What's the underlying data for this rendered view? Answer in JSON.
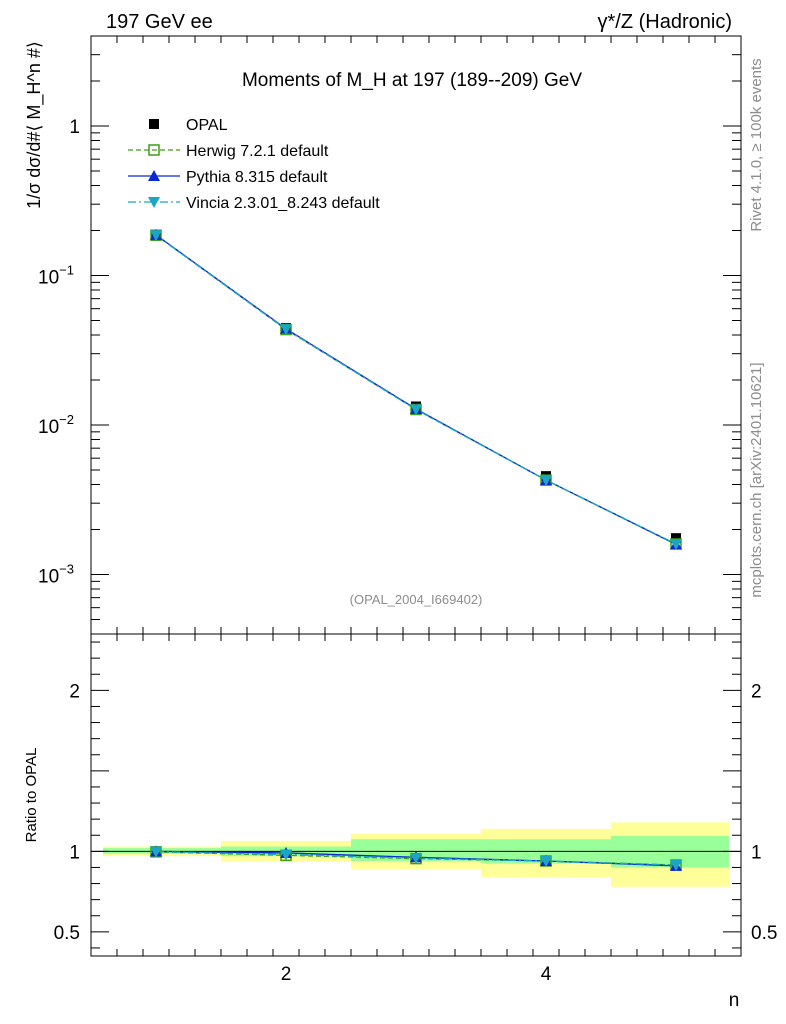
{
  "header": {
    "left_label": "197 GeV ee",
    "right_label": "γ*/Z (Hadronic)"
  },
  "side_labels": {
    "rivet": "Rivet 4.1.0, ≥ 100k events",
    "mcplots": "mcplots.cern.ch [arXiv:2401.10621]"
  },
  "chart_data": {
    "type": "line",
    "title": "Moments of M_H at 197 (189--209) GeV",
    "analysis_tag": "(OPAL_2004_I669402)",
    "xlabel": "n",
    "ylabel": "1/σ  dσ/d#⟨ M_H^n #⟩",
    "ratio_ylabel": "Ratio to OPAL",
    "x": [
      1,
      2,
      3,
      4,
      5
    ],
    "xlim": [
      0.5,
      5.5
    ],
    "ylim_log": [
      0.0004,
      4.0
    ],
    "ratio_ylim": [
      0.35,
      2.35
    ],
    "x_ticks": [
      "2",
      "4"
    ],
    "y_ticks_main": [
      "10^-3",
      "10^-2",
      "10^-1",
      "1"
    ],
    "y_ticks_ratio": [
      "0.5",
      "1",
      "2"
    ],
    "series": [
      {
        "name": "OPAL",
        "values": [
          0.186,
          0.0445,
          0.0133,
          0.00455,
          0.00175
        ],
        "style": "data",
        "color": "#000000"
      },
      {
        "name": "Herwig 7.2.1 default",
        "values": [
          0.186,
          0.0435,
          0.0127,
          0.00428,
          0.0016
        ],
        "style": "dashed",
        "marker": "open-square",
        "color": "#3e9f12"
      },
      {
        "name": "Pythia 8.315 default",
        "values": [
          0.187,
          0.044,
          0.0128,
          0.00428,
          0.00159
        ],
        "style": "solid",
        "marker": "triangle-up",
        "color": "#0a28d6"
      },
      {
        "name": "Vincia 2.3.01_8.243 default",
        "values": [
          0.186,
          0.0437,
          0.0127,
          0.00428,
          0.0016
        ],
        "style": "dashdot",
        "marker": "triangle-down",
        "color": "#1aa6c6"
      }
    ],
    "ratio_series": [
      {
        "name": "Herwig 7.2.1 default",
        "values": [
          0.997,
          0.975,
          0.955,
          0.94,
          0.915
        ]
      },
      {
        "name": "Pythia 8.315 default",
        "values": [
          1.0,
          0.99,
          0.963,
          0.94,
          0.91
        ]
      },
      {
        "name": "Vincia 2.3.01_8.243 default",
        "values": [
          0.998,
          0.98,
          0.958,
          0.94,
          0.915
        ]
      }
    ],
    "uncertainty_bands": {
      "stat_color": "#99ff99",
      "total_color": "#ffff99",
      "stat": [
        [
          0.985,
          1.02
        ],
        [
          0.97,
          1.03
        ],
        [
          0.94,
          1.075
        ],
        [
          0.925,
          1.075
        ],
        [
          0.9,
          1.095
        ]
      ],
      "total": [
        [
          0.97,
          1.03
        ],
        [
          0.935,
          1.065
        ],
        [
          0.89,
          1.11
        ],
        [
          0.84,
          1.14
        ],
        [
          0.78,
          1.18
        ]
      ]
    }
  }
}
